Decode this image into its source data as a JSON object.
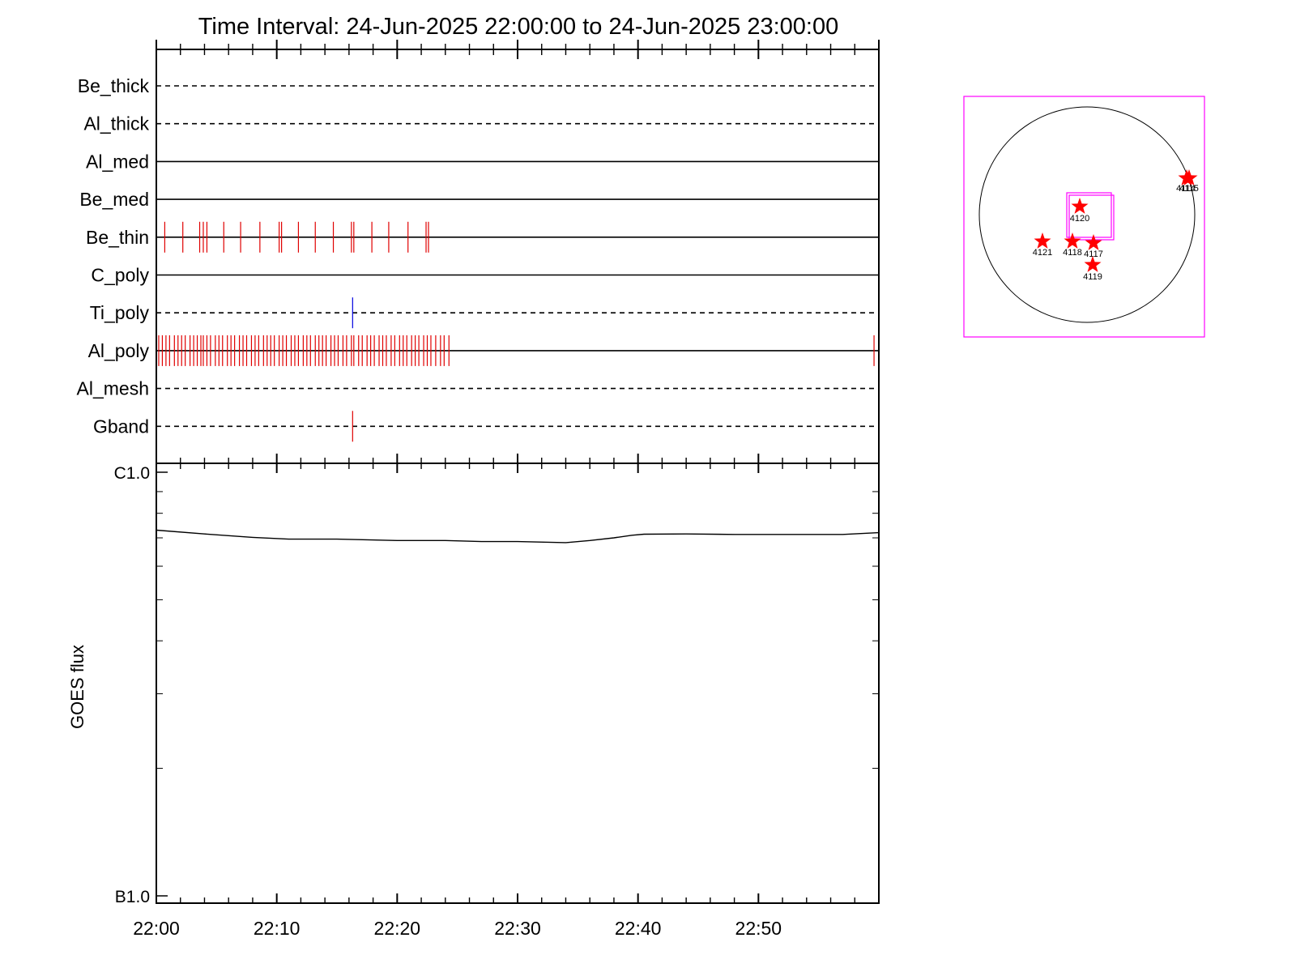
{
  "chart_data": [
    {
      "type": "timeline",
      "title": "Time Interval: 24-Jun-2025 22:00:00 to 24-Jun-2025 23:00:00",
      "x_range_minutes": [
        0,
        60
      ],
      "x_tick_labels": [
        "22:00",
        "22:10",
        "22:20",
        "22:30",
        "22:40",
        "22:50"
      ],
      "x_tick_values_minutes": [
        0,
        10,
        20,
        30,
        40,
        50
      ],
      "rows": [
        {
          "label": "Be_thick",
          "line_style": "dashed",
          "events_minutes": [],
          "event_color": "#e00000"
        },
        {
          "label": "Al_thick",
          "line_style": "dashed",
          "events_minutes": [],
          "event_color": "#e00000"
        },
        {
          "label": "Al_med",
          "line_style": "solid",
          "events_minutes": [],
          "event_color": "#e00000"
        },
        {
          "label": "Be_med",
          "line_style": "solid",
          "events_minutes": [],
          "event_color": "#e00000"
        },
        {
          "label": "Be_thin",
          "line_style": "solid",
          "event_color": "#e00000",
          "events_minutes": [
            0.7,
            2.2,
            3.6,
            3.9,
            4.2,
            5.6,
            7.0,
            8.6,
            10.2,
            10.4,
            11.8,
            13.2,
            14.7,
            16.2,
            16.4,
            17.9,
            19.3,
            20.9,
            22.4,
            22.6
          ]
        },
        {
          "label": "C_poly",
          "line_style": "solid",
          "events_minutes": [],
          "event_color": "#e00000"
        },
        {
          "label": "Ti_poly",
          "line_style": "dashed",
          "event_color": "#0000e0",
          "events_minutes": [
            16.3
          ]
        },
        {
          "label": "Al_poly",
          "line_style": "solid",
          "event_color": "#e00000",
          "events_minutes": [
            0.2,
            0.5,
            0.8,
            1.1,
            1.5,
            1.8,
            2.1,
            2.4,
            2.8,
            3.1,
            3.4,
            3.7,
            3.9,
            4.2,
            4.5,
            4.9,
            5.2,
            5.5,
            5.9,
            6.2,
            6.5,
            6.9,
            7.2,
            7.5,
            7.9,
            8.2,
            8.5,
            8.9,
            9.2,
            9.5,
            9.8,
            10.2,
            10.5,
            10.8,
            11.2,
            11.5,
            11.8,
            12.2,
            12.5,
            12.8,
            13.2,
            13.5,
            13.8,
            14.1,
            14.5,
            14.8,
            15.1,
            15.5,
            15.8,
            16.2,
            16.4,
            16.8,
            17.1,
            17.5,
            17.8,
            18.1,
            18.5,
            18.8,
            19.1,
            19.5,
            19.8,
            20.2,
            20.5,
            20.8,
            21.2,
            21.5,
            21.8,
            22.2,
            22.5,
            22.8,
            23.2,
            23.6,
            23.9,
            24.3,
            59.6
          ]
        },
        {
          "label": "Al_mesh",
          "line_style": "dashed",
          "events_minutes": [],
          "event_color": "#e00000"
        },
        {
          "label": "Gband",
          "line_style": "dashed",
          "event_color": "#e00000",
          "events_minutes": [
            16.3
          ]
        }
      ]
    },
    {
      "type": "line",
      "ylabel": "GOES flux",
      "y_tick_labels": [
        "C1.0",
        "B1.0"
      ],
      "y_scale": "log",
      "ylim": [
        1e-07,
        1e-06
      ],
      "x_range_minutes": [
        0,
        60
      ],
      "x_tick_labels": [
        "22:00",
        "22:10",
        "22:20",
        "22:30",
        "22:40",
        "22:50"
      ],
      "series": [
        {
          "color": "#000000",
          "x_minutes": [
            0,
            4,
            8,
            11,
            15,
            20,
            24,
            27,
            30,
            34,
            36,
            38,
            39.5,
            40.5,
            44,
            48,
            53,
            57,
            60
          ],
          "y_flux": [
            7.3e-07,
            7.15e-07,
            7.02e-07,
            6.95e-07,
            6.95e-07,
            6.9e-07,
            6.9e-07,
            6.86e-07,
            6.86e-07,
            6.82e-07,
            6.9e-07,
            7e-07,
            7.1e-07,
            7.14e-07,
            7.15e-07,
            7.13e-07,
            7.13e-07,
            7.13e-07,
            7.2e-07
          ]
        }
      ]
    }
  ],
  "sun_map": {
    "frame_color": "#ff00ff",
    "marker_color": "#ff0000",
    "regions": [
      "4120",
      "4121",
      "4118",
      "4117",
      "4119",
      "4114",
      "4115"
    ]
  }
}
